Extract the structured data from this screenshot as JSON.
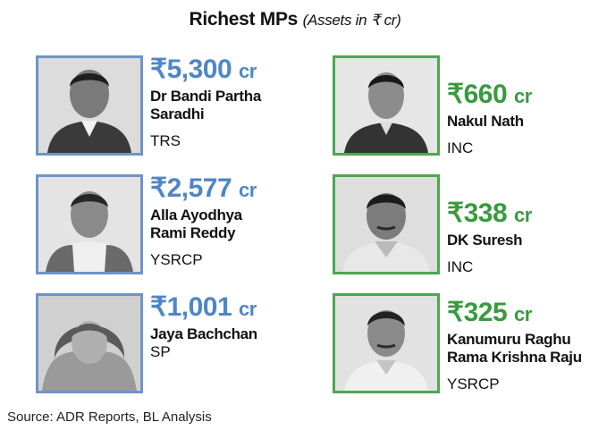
{
  "title": {
    "main": "Richest MPs",
    "sub": "(Assets in ₹ cr)"
  },
  "mps": [
    {
      "amount": "₹5,300",
      "unit": "cr",
      "name": "Dr Bandi Partha\nSaradhi",
      "party": "TRS",
      "color": "#4f86c6"
    },
    {
      "amount": "₹2,577",
      "unit": "cr",
      "name": "Alla Ayodhya\nRami Reddy",
      "party": "YSRCP",
      "color": "#4f86c6"
    },
    {
      "amount": "₹1,001",
      "unit": "cr",
      "name": "Jaya Bachchan",
      "party": "SP",
      "color": "#4f86c6"
    },
    {
      "amount": "₹660",
      "unit": "cr",
      "name": "Nakul Nath",
      "party": "INC",
      "color": "#3a9a3f"
    },
    {
      "amount": "₹338",
      "unit": "cr",
      "name": "DK Suresh",
      "party": "INC",
      "color": "#3a9a3f"
    },
    {
      "amount": "₹325",
      "unit": "cr",
      "name": "Kanumuru Raghu\nRama Krishna Raju",
      "party": "YSRCP",
      "color": "#3a9a3f"
    }
  ],
  "source": "Source: ADR Reports, BL Analysis"
}
